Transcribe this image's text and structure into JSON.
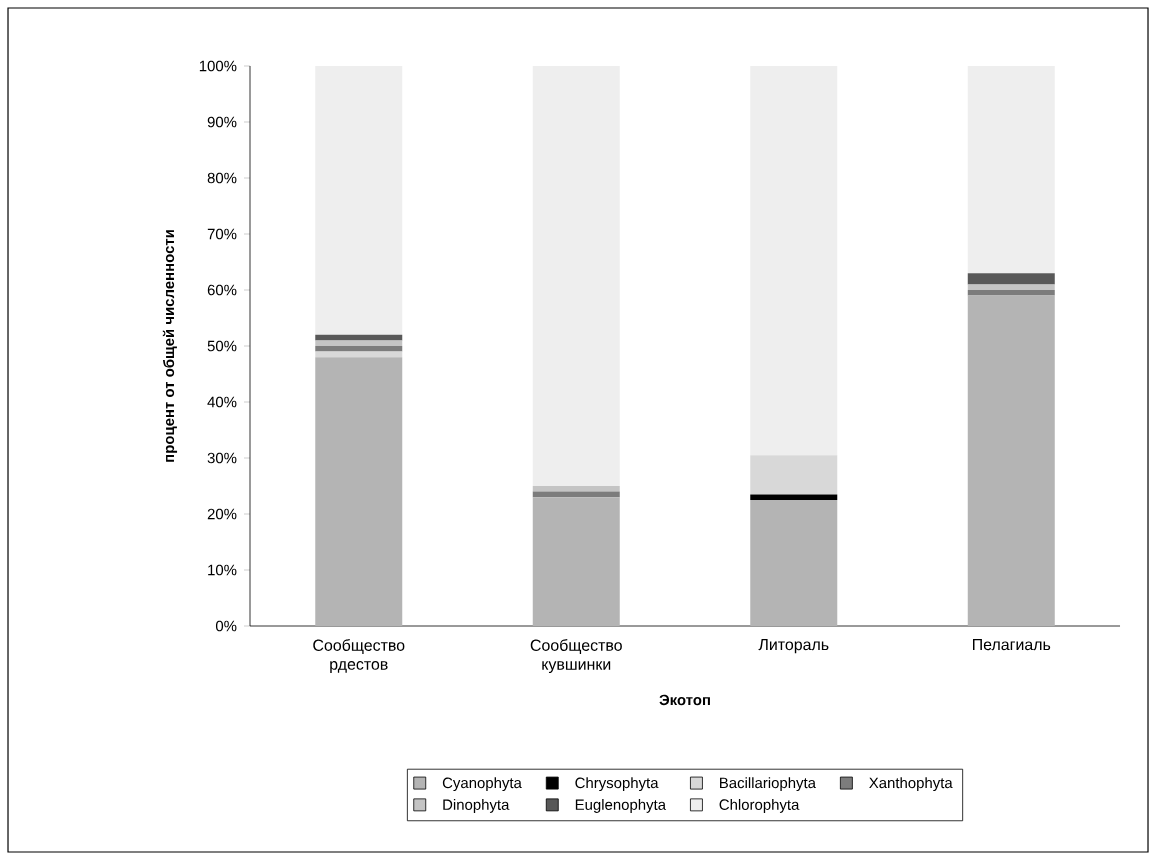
{
  "chart_data": {
    "type": "bar",
    "stacked": true,
    "xlabel": "Экотоп",
    "ylabel": "процент от общей численности",
    "categories": [
      "Сообщество рдестов",
      "Сообщество кувшинки",
      "Литораль",
      "Пелагиаль"
    ],
    "series": [
      {
        "name": "Cyanophyta",
        "color": "#b4b4b4",
        "values": [
          48,
          23,
          22.5,
          59
        ]
      },
      {
        "name": "Chrysophyta",
        "color": "#000000",
        "values": [
          0,
          0,
          1,
          0
        ]
      },
      {
        "name": "Bacillariophyta",
        "color": "#d8d8d8",
        "values": [
          1,
          0,
          7,
          0
        ]
      },
      {
        "name": "Xanthophyta",
        "color": "#7c7c7c",
        "values": [
          1,
          1,
          0,
          1
        ]
      },
      {
        "name": "Dinophyta",
        "color": "#c4c4c4",
        "values": [
          1,
          1,
          0,
          1
        ]
      },
      {
        "name": "Euglenophyta",
        "color": "#585858",
        "values": [
          1,
          0,
          0,
          2
        ]
      },
      {
        "name": "Chlorophyta",
        "color": "#eeeeee",
        "values": [
          48,
          75,
          69.5,
          37
        ]
      }
    ],
    "ylim": [
      0,
      100
    ],
    "yticks": [
      {
        "value": 0,
        "label": "0%"
      },
      {
        "value": 10,
        "label": "10%"
      },
      {
        "value": 20,
        "label": "20%"
      },
      {
        "value": 30,
        "label": "30%"
      },
      {
        "value": 40,
        "label": "40%"
      },
      {
        "value": 50,
        "label": "50%"
      },
      {
        "value": 60,
        "label": "60%"
      },
      {
        "value": 70,
        "label": "70%"
      },
      {
        "value": 80,
        "label": "80%"
      },
      {
        "value": 90,
        "label": "90%"
      },
      {
        "value": 100,
        "label": "100%"
      }
    ],
    "legend": "bottom"
  }
}
